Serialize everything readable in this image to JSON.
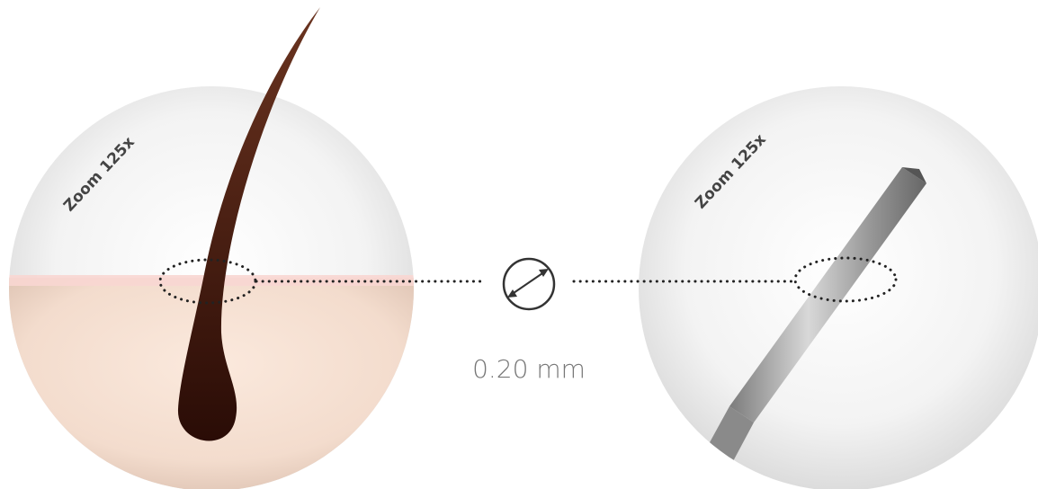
{
  "left_circle": {
    "label": "Zoom 125x"
  },
  "right_circle": {
    "label": "Zoom 125x"
  },
  "measurement": {
    "label": "0.20 mm"
  }
}
